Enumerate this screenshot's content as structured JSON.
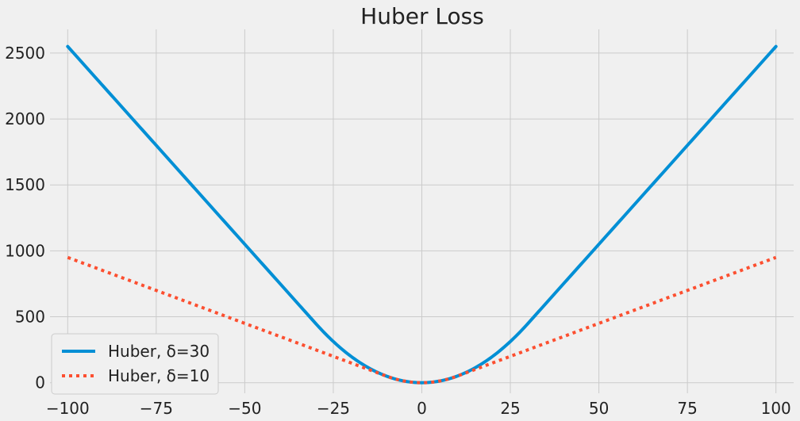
{
  "chart_data": {
    "type": "line",
    "title": "Huber Loss",
    "xlabel": "",
    "ylabel": "",
    "xlim": [
      -105,
      105
    ],
    "ylim": [
      -80,
      2680
    ],
    "x_ticks": [
      -100,
      -75,
      -50,
      -25,
      0,
      25,
      50,
      75,
      100
    ],
    "x_tick_labels": [
      "−100",
      "−75",
      "−50",
      "−25",
      "0",
      "25",
      "50",
      "75",
      "100"
    ],
    "y_ticks": [
      0,
      500,
      1000,
      1500,
      2000,
      2500
    ],
    "y_tick_labels": [
      "0",
      "500",
      "1000",
      "1500",
      "2000",
      "2500"
    ],
    "grid": true,
    "legend_position": "lower-left",
    "series": [
      {
        "name": "Huber, δ=30",
        "delta": 30,
        "color": "#008fd5",
        "line_style": "solid",
        "x": [
          -100,
          -75,
          -50,
          -30,
          -25,
          -20,
          -10,
          0,
          10,
          20,
          25,
          30,
          50,
          75,
          100
        ],
        "values": [
          2550,
          1800,
          1050,
          450,
          312.5,
          200,
          50,
          0,
          50,
          200,
          312.5,
          450,
          1050,
          1800,
          2550
        ]
      },
      {
        "name": "Huber, δ=10",
        "delta": 10,
        "color": "#fc4f30",
        "line_style": "dotted",
        "x": [
          -100,
          -75,
          -50,
          -25,
          -10,
          -5,
          0,
          5,
          10,
          25,
          50,
          75,
          100
        ],
        "values": [
          950,
          700,
          450,
          200,
          50,
          12.5,
          0,
          12.5,
          50,
          200,
          450,
          700,
          950
        ]
      }
    ]
  }
}
